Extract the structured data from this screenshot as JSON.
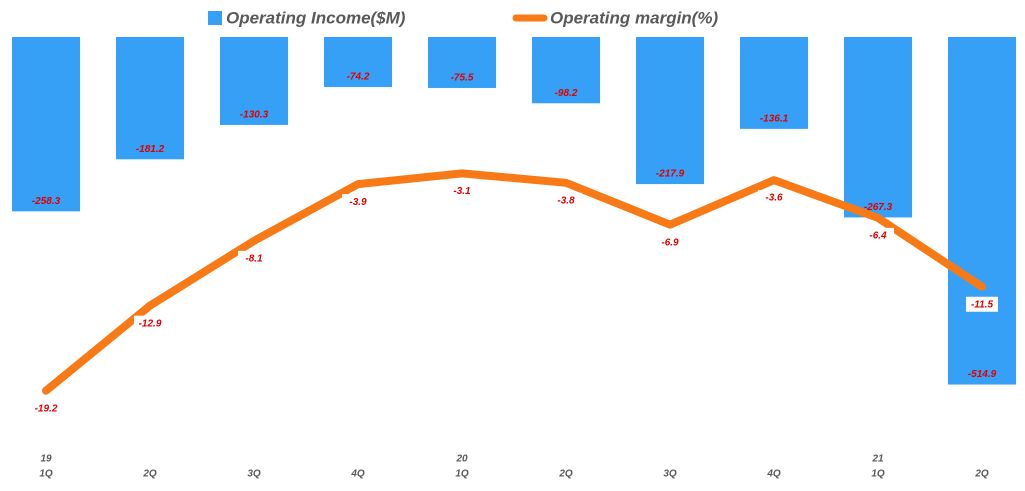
{
  "chart_data": {
    "type": "bar",
    "categories": [
      "1Q",
      "2Q",
      "3Q",
      "4Q",
      "1Q",
      "2Q",
      "3Q",
      "4Q",
      "1Q",
      "2Q"
    ],
    "years": [
      "19",
      null,
      null,
      null,
      "20",
      null,
      null,
      null,
      "21",
      null
    ],
    "series": [
      {
        "name": "Operating Income($M)",
        "type": "bar",
        "color": "#35a0f5",
        "values": [
          -258.3,
          -181.2,
          -130.3,
          -74.2,
          -75.5,
          -98.2,
          -217.9,
          -136.1,
          -267.3,
          -514.9
        ]
      },
      {
        "name": "Operating margin(%)",
        "type": "line",
        "color": "#f87a16",
        "axis": "y2",
        "values": [
          -19.2,
          -12.9,
          -8.1,
          -3.9,
          -3.1,
          -3.8,
          -6.9,
          -3.6,
          -6.4,
          -11.5
        ]
      }
    ],
    "ylim": [
      -600,
      0
    ],
    "y2lim": [
      -23,
      7
    ],
    "grid": false,
    "legend": "top"
  }
}
